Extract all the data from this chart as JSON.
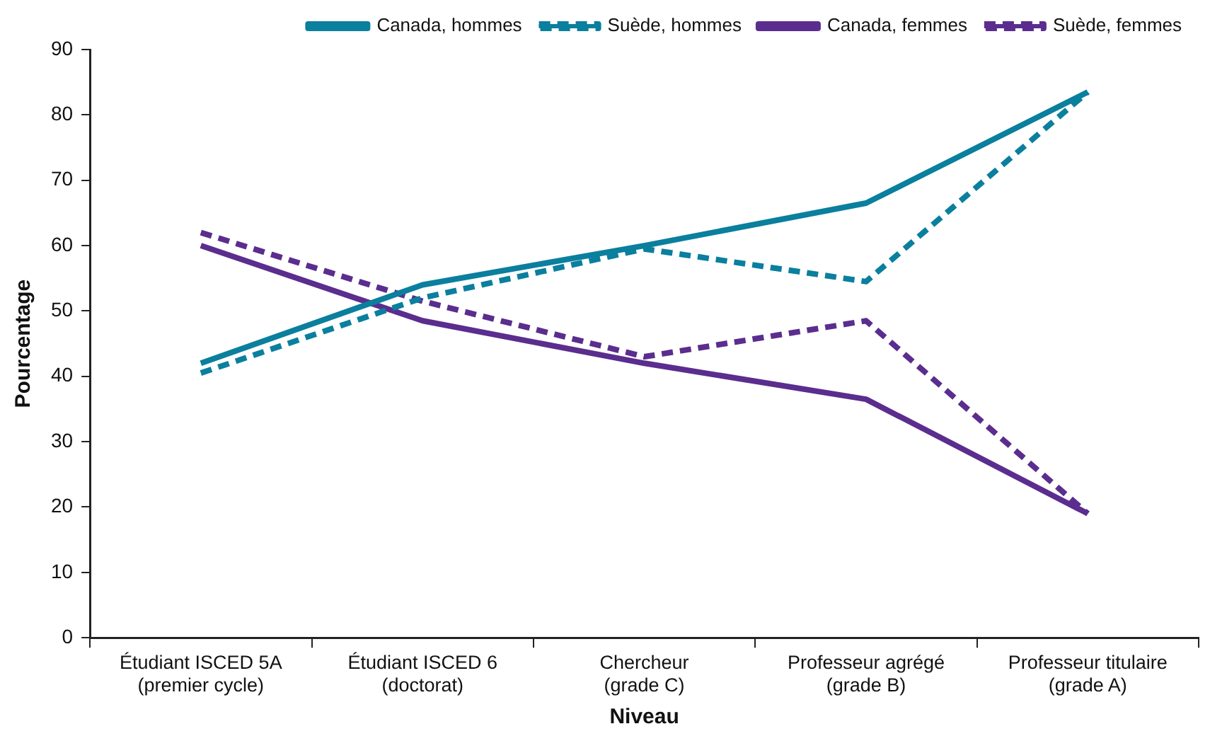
{
  "chart_data": {
    "type": "line",
    "xlabel": "Niveau",
    "ylabel": "Pourcentage",
    "categories": [
      "Étudiant ISCED 5A (premier cycle)",
      "Étudiant ISCED 6 (doctorat)",
      "Chercheur (grade C)",
      "Professeur agrégé (grade B)",
      "Professeur titulaire (grade A)"
    ],
    "series": [
      {
        "name": "Canada, hommes",
        "color": "#0a7f9e",
        "line_style": "solid",
        "values": [
          42,
          54,
          60,
          66.5,
          83.5
        ]
      },
      {
        "name": "Suède, hommes",
        "color": "#0a7f9e",
        "line_style": "dashed",
        "values": [
          40.5,
          52,
          59.5,
          54.5,
          83.5
        ]
      },
      {
        "name": "Canada, femmes",
        "color": "#5b2d8e",
        "line_style": "solid",
        "values": [
          60,
          48.5,
          42,
          36.5,
          19
        ]
      },
      {
        "name": "Suède, femmes",
        "color": "#5b2d8e",
        "line_style": "dashed",
        "values": [
          62,
          51.5,
          43,
          48.5,
          19
        ]
      }
    ],
    "ylim": [
      0,
      90
    ],
    "yticks": [
      0,
      10,
      20,
      30,
      40,
      50,
      60,
      70,
      80,
      90
    ],
    "grid": false,
    "legend": "top right",
    "marker": "none"
  }
}
